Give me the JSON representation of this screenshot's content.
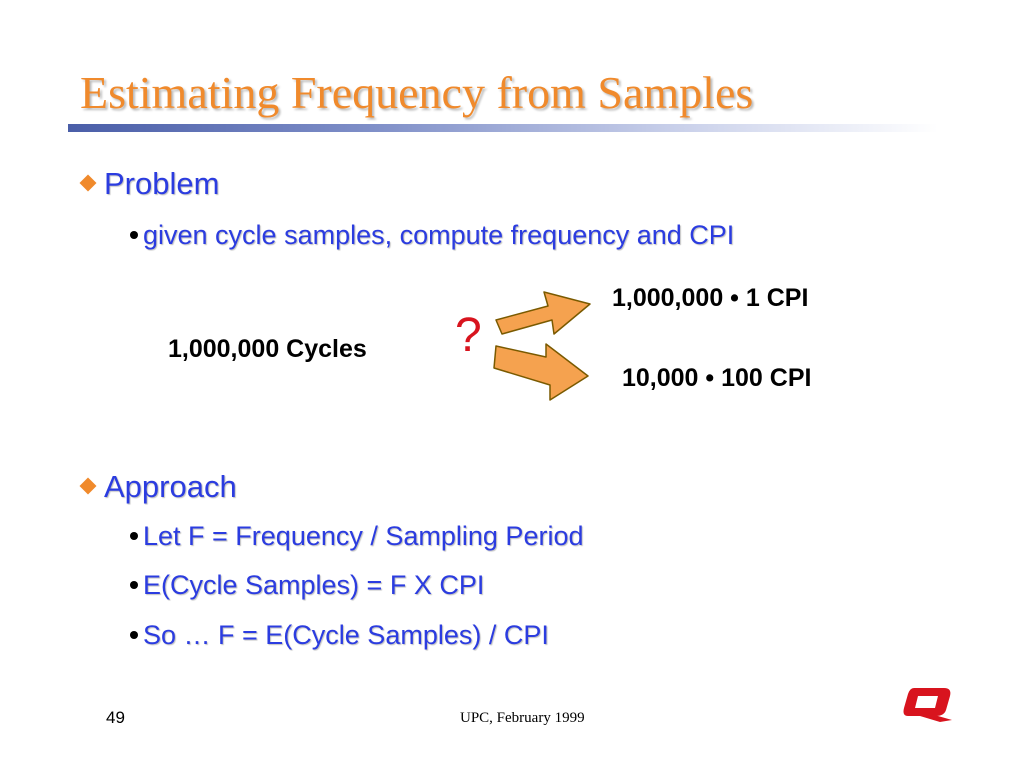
{
  "title": "Estimating Frequency from Samples",
  "sections": [
    {
      "heading": "Problem",
      "bullets": [
        "given cycle samples, compute frequency and CPI"
      ]
    },
    {
      "heading": "Approach",
      "bullets": [
        "Let F = Frequency / Sampling Period",
        "E(Cycle Samples) = F X CPI",
        "So … F = E(Cycle Samples) / CPI"
      ]
    }
  ],
  "diagram": {
    "input": "1,000,000 Cycles",
    "question": "?",
    "outcome_top": "1,000,000 • 1 CPI",
    "outcome_bottom": "10,000 • 100 CPI"
  },
  "footer": {
    "page_number": "49",
    "text": "UPC, February 1999"
  },
  "colors": {
    "title": "#f08a2c",
    "bullet_text": "#2b3ce0",
    "arrow_fill": "#f5a24f",
    "question_mark": "#d8141e",
    "logo": "#d8141e"
  },
  "icons": {
    "level1_bullet": "diamond-bullet-icon",
    "level2_bullet": "dot-bullet-icon",
    "arrows": "arrow-icon",
    "logo": "upc-logo-icon"
  }
}
